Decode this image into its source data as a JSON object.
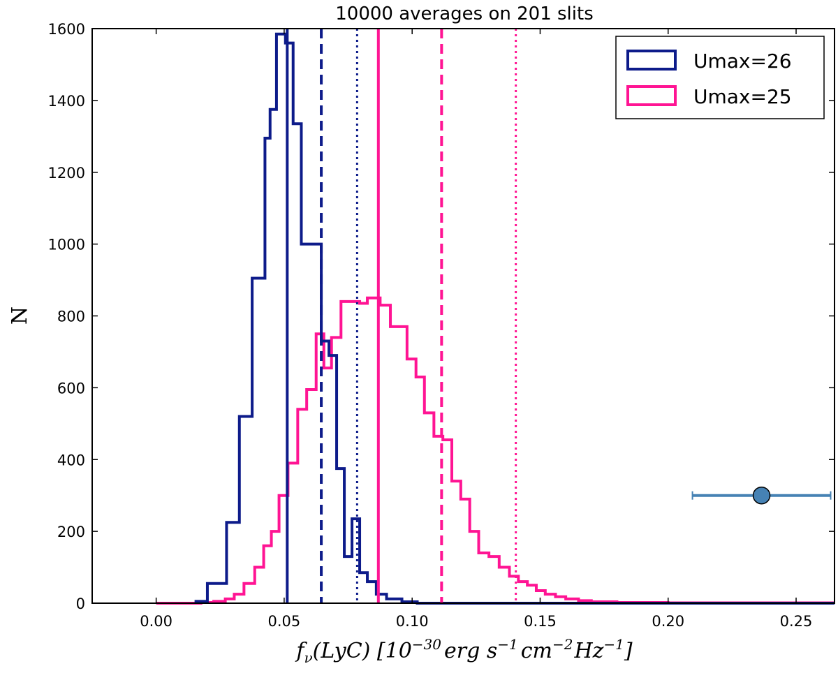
{
  "chart_data": {
    "type": "histogram",
    "title": "10000 averages on 201 slits",
    "xlabel": "f_ν(LyC) [10^-30 erg s^-1 cm^-2 Hz^-1]",
    "xlabel_parts": {
      "f": "f",
      "nu": "ν",
      "lyc": "(LyC) [10",
      "exp1": "−30",
      "erg": "erg s",
      "exp2": "−1",
      "cm": "cm",
      "exp3": "−2",
      "hz": "Hz",
      "exp4": "−1",
      "close": "]"
    },
    "ylabel": "N",
    "xlim": [
      -0.025,
      0.265
    ],
    "ylim": [
      0,
      1600
    ],
    "xticks": [
      0.0,
      0.05,
      0.1,
      0.15,
      0.2,
      0.25
    ],
    "xtick_labels": [
      "0.00",
      "0.05",
      "0.10",
      "0.15",
      "0.20",
      "0.25"
    ],
    "yticks": [
      0,
      200,
      400,
      600,
      800,
      1000,
      1200,
      1400,
      1600
    ],
    "ytick_labels": [
      "0",
      "200",
      "400",
      "600",
      "800",
      "1000",
      "1200",
      "1400",
      "1600"
    ],
    "series": [
      {
        "name": "Umax=26",
        "color": "#0d1b8a",
        "bins": [
          [
            0.015,
            0.02,
            5
          ],
          [
            0.02,
            0.025,
            55
          ],
          [
            0.025,
            0.0275,
            55
          ],
          [
            0.0275,
            0.0305,
            225
          ],
          [
            0.0305,
            0.0325,
            225
          ],
          [
            0.0325,
            0.0353,
            520
          ],
          [
            0.0353,
            0.0375,
            520
          ],
          [
            0.0375,
            0.0398,
            905
          ],
          [
            0.0398,
            0.0425,
            905
          ],
          [
            0.0425,
            0.0445,
            1295
          ],
          [
            0.0445,
            0.047,
            1375
          ],
          [
            0.047,
            0.0505,
            1585
          ],
          [
            0.0505,
            0.0535,
            1560
          ],
          [
            0.0535,
            0.0567,
            1335
          ],
          [
            0.0567,
            0.06,
            1000
          ],
          [
            0.06,
            0.0645,
            1000
          ],
          [
            0.0645,
            0.0675,
            730
          ],
          [
            0.0675,
            0.0705,
            690
          ],
          [
            0.0705,
            0.0735,
            375
          ],
          [
            0.0735,
            0.0765,
            130
          ],
          [
            0.0765,
            0.0795,
            235
          ],
          [
            0.0795,
            0.0825,
            85
          ],
          [
            0.0825,
            0.086,
            60
          ],
          [
            0.086,
            0.09,
            25
          ],
          [
            0.09,
            0.096,
            12
          ],
          [
            0.096,
            0.102,
            4
          ],
          [
            0.102,
            0.265,
            0
          ]
        ]
      },
      {
        "name": "Umax=25",
        "color": "#ff1493",
        "bins": [
          [
            0.0,
            0.0175,
            0
          ],
          [
            0.0175,
            0.0225,
            2
          ],
          [
            0.0225,
            0.027,
            5
          ],
          [
            0.027,
            0.0305,
            12
          ],
          [
            0.0305,
            0.0343,
            25
          ],
          [
            0.0343,
            0.0385,
            55
          ],
          [
            0.0385,
            0.042,
            100
          ],
          [
            0.042,
            0.045,
            160
          ],
          [
            0.045,
            0.048,
            200
          ],
          [
            0.048,
            0.0515,
            300
          ],
          [
            0.0515,
            0.0553,
            390
          ],
          [
            0.0553,
            0.0588,
            540
          ],
          [
            0.0588,
            0.0625,
            595
          ],
          [
            0.0625,
            0.0655,
            750
          ],
          [
            0.0655,
            0.0685,
            655
          ],
          [
            0.0685,
            0.0722,
            740
          ],
          [
            0.0722,
            0.0755,
            840
          ],
          [
            0.0755,
            0.0795,
            840
          ],
          [
            0.0795,
            0.0825,
            835
          ],
          [
            0.0825,
            0.0875,
            850
          ],
          [
            0.0875,
            0.0915,
            830
          ],
          [
            0.0915,
            0.0945,
            770
          ],
          [
            0.0945,
            0.098,
            770
          ],
          [
            0.098,
            0.1015,
            680
          ],
          [
            0.1015,
            0.1048,
            630
          ],
          [
            0.1048,
            0.1085,
            530
          ],
          [
            0.1085,
            0.112,
            465
          ],
          [
            0.112,
            0.1155,
            455
          ],
          [
            0.1155,
            0.119,
            340
          ],
          [
            0.119,
            0.1225,
            290
          ],
          [
            0.1225,
            0.126,
            200
          ],
          [
            0.126,
            0.13,
            140
          ],
          [
            0.13,
            0.134,
            130
          ],
          [
            0.134,
            0.138,
            100
          ],
          [
            0.138,
            0.1415,
            75
          ],
          [
            0.1415,
            0.145,
            60
          ],
          [
            0.145,
            0.1485,
            50
          ],
          [
            0.1485,
            0.152,
            35
          ],
          [
            0.152,
            0.156,
            25
          ],
          [
            0.156,
            0.16,
            18
          ],
          [
            0.16,
            0.165,
            12
          ],
          [
            0.165,
            0.17,
            7
          ],
          [
            0.17,
            0.18,
            4
          ],
          [
            0.18,
            0.2,
            2
          ],
          [
            0.2,
            0.265,
            1
          ]
        ]
      }
    ],
    "vlines": [
      {
        "x": 0.0512,
        "series": "Umax=26",
        "style": "solid",
        "color": "#0d1b8a"
      },
      {
        "x": 0.0645,
        "series": "Umax=26",
        "style": "dashed",
        "color": "#0d1b8a"
      },
      {
        "x": 0.0785,
        "series": "Umax=26",
        "style": "dotted",
        "color": "#0d1b8a"
      },
      {
        "x": 0.0868,
        "series": "Umax=25",
        "style": "solid",
        "color": "#ff1493"
      },
      {
        "x": 0.1115,
        "series": "Umax=25",
        "style": "dashed",
        "color": "#ff1493"
      },
      {
        "x": 0.1405,
        "series": "Umax=25",
        "style": "dotted",
        "color": "#ff1493"
      }
    ],
    "errorbar_point": {
      "x": 0.2365,
      "y": 300,
      "xerr_low": 0.2095,
      "xerr_high": 0.2635,
      "color": "#4682b4"
    },
    "legend": {
      "placement": "top-right",
      "entries": [
        {
          "label": "Umax=26",
          "color": "#0d1b8a"
        },
        {
          "label": "Umax=25",
          "color": "#ff1493"
        }
      ]
    }
  }
}
